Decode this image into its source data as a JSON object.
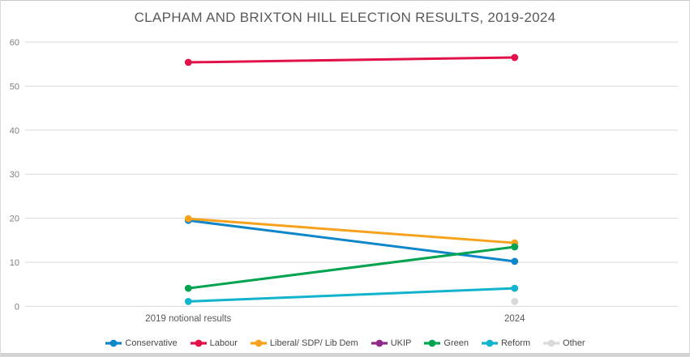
{
  "chart_data": {
    "type": "line",
    "title": "CLAPHAM AND BRIXTON HILL ELECTION RESULTS, 2019-2024",
    "categories": [
      "2019 notional results",
      "2024"
    ],
    "series": [
      {
        "name": "Conservative",
        "color": "#0f85ca",
        "values": [
          19.5,
          10.2
        ]
      },
      {
        "name": "Labour",
        "color": "#e01249",
        "values": [
          55.4,
          56.5
        ]
      },
      {
        "name": "Liberal/ SDP/ Lib Dem",
        "color": "#f7a21c",
        "values": [
          19.9,
          14.4
        ]
      },
      {
        "name": "UKIP",
        "color": "#8e2a8c",
        "values": [
          null,
          null
        ]
      },
      {
        "name": "Green",
        "color": "#00a350",
        "values": [
          4.1,
          13.5
        ]
      },
      {
        "name": "Reform",
        "color": "#12b3cc",
        "values": [
          1.1,
          4.1
        ]
      },
      {
        "name": "Other",
        "color": "#d9d9d9",
        "values": [
          null,
          1.1
        ]
      }
    ],
    "y_ticks": [
      0,
      10,
      20,
      30,
      40,
      50,
      60
    ],
    "ylim": [
      0,
      60
    ],
    "grid": true,
    "legend_position": "bottom",
    "colors": {
      "gridline": "#d9d9d9",
      "title_text": "#595959",
      "y_tick_text": "#7f7f7f",
      "x_tick_text": "#595959",
      "legend_text": "#474747"
    }
  }
}
